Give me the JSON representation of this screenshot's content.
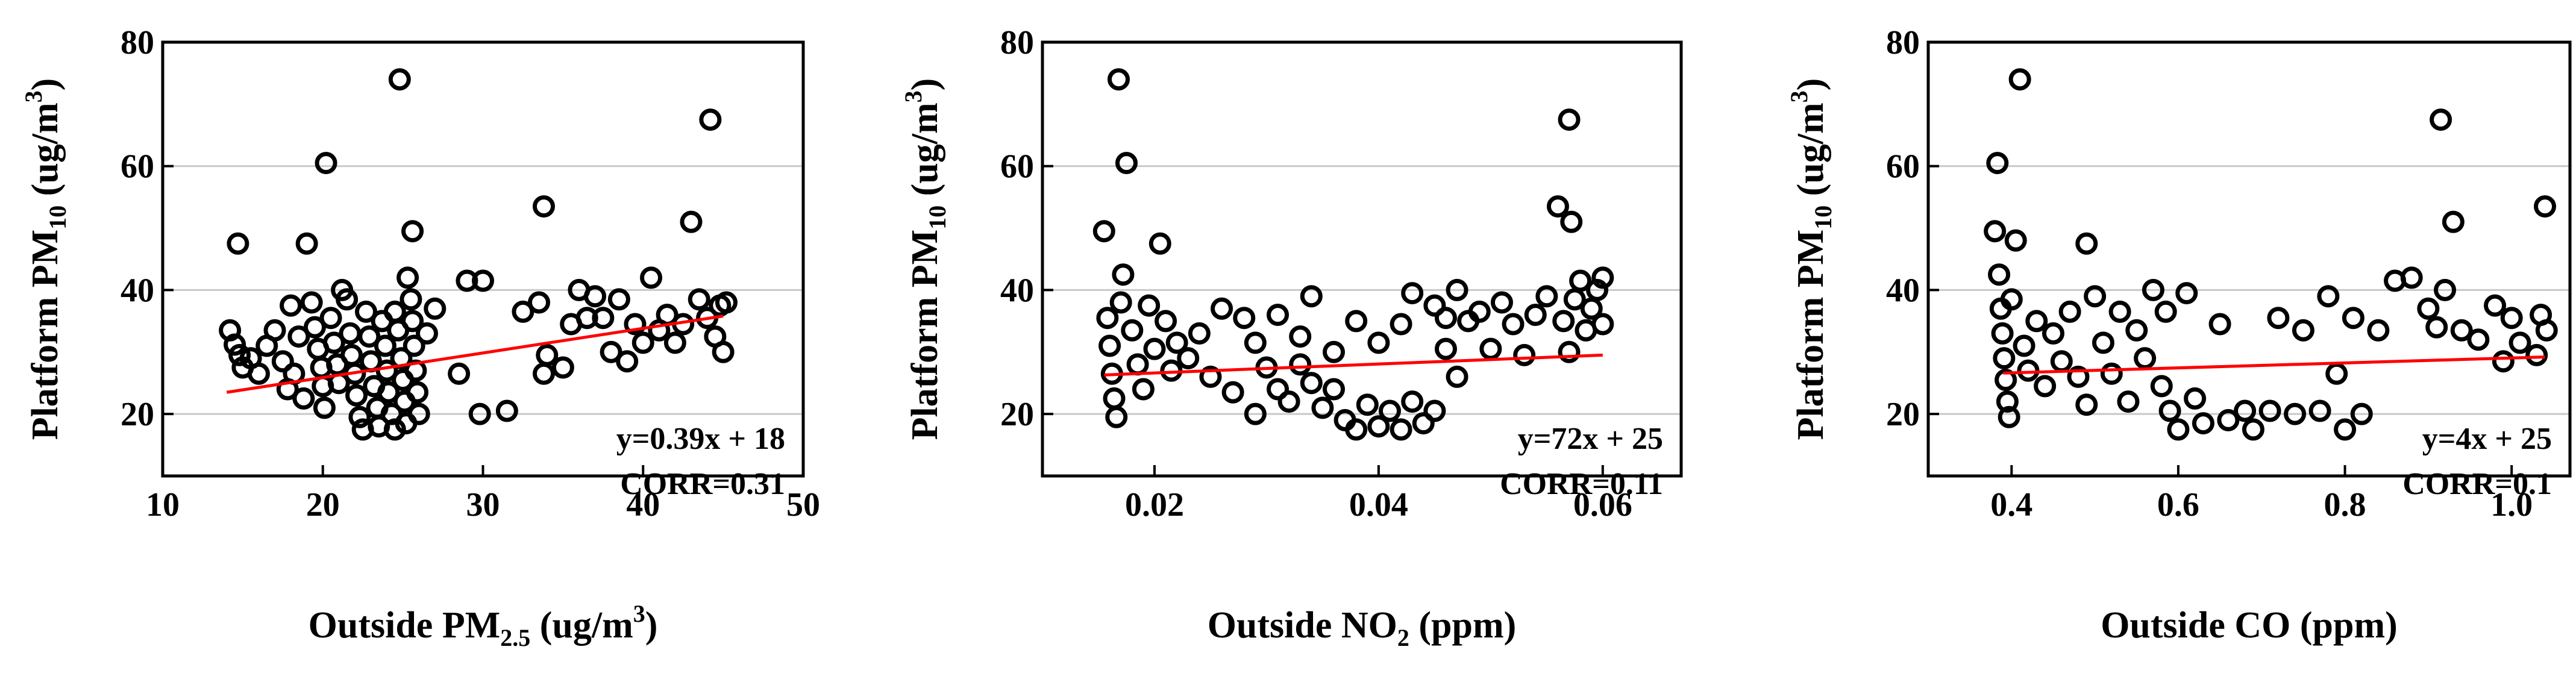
{
  "chart_data": [
    {
      "type": "scatter",
      "xlabel": {
        "pre": "Outside PM",
        "sub": "2.5",
        "mid": " (ug/m",
        "sup": "3",
        "post": ")"
      },
      "ylabel": {
        "pre": "Platform PM",
        "sub": "10",
        "mid": " (ug/m",
        "sup": "3",
        "post": ")"
      },
      "xlim": [
        10,
        50
      ],
      "ylim": [
        10,
        80
      ],
      "xticks": [
        10,
        20,
        30,
        40,
        50
      ],
      "xtick_labels": [
        "10",
        "20",
        "30",
        "40",
        "50"
      ],
      "yticks": [
        20,
        40,
        60,
        80
      ],
      "ytick_labels": [
        "20",
        "40",
        "60",
        "80"
      ],
      "grid": true,
      "fit_label": "y=0.39x + 18",
      "corr_label": "CORR=0.31",
      "fit_line": {
        "x": [
          14,
          45
        ],
        "y": [
          23.5,
          35.8
        ]
      },
      "points": [
        [
          14.2,
          33.5
        ],
        [
          14.5,
          31.2
        ],
        [
          14.8,
          29.5
        ],
        [
          15.0,
          27.5
        ],
        [
          14.7,
          47.5
        ],
        [
          15.5,
          29.0
        ],
        [
          16.0,
          26.5
        ],
        [
          16.5,
          31.0
        ],
        [
          17.0,
          33.5
        ],
        [
          17.5,
          28.5
        ],
        [
          17.8,
          24.0
        ],
        [
          18.0,
          37.5
        ],
        [
          18.5,
          32.5
        ],
        [
          18.2,
          26.5
        ],
        [
          18.8,
          22.5
        ],
        [
          19.0,
          47.5
        ],
        [
          19.3,
          38.0
        ],
        [
          19.5,
          34.0
        ],
        [
          19.7,
          30.5
        ],
        [
          19.9,
          27.5
        ],
        [
          20.0,
          24.5
        ],
        [
          20.1,
          21.0
        ],
        [
          20.2,
          60.5
        ],
        [
          20.5,
          35.5
        ],
        [
          20.7,
          31.5
        ],
        [
          20.9,
          28.0
        ],
        [
          21.0,
          25.0
        ],
        [
          21.2,
          40.0
        ],
        [
          21.5,
          38.5
        ],
        [
          21.7,
          33.0
        ],
        [
          21.8,
          29.5
        ],
        [
          22.0,
          26.5
        ],
        [
          22.1,
          23.0
        ],
        [
          22.3,
          19.5
        ],
        [
          22.5,
          17.5
        ],
        [
          22.7,
          36.5
        ],
        [
          22.9,
          32.5
        ],
        [
          23.0,
          28.5
        ],
        [
          23.2,
          24.5
        ],
        [
          23.4,
          21.0
        ],
        [
          23.5,
          18.0
        ],
        [
          23.7,
          35.0
        ],
        [
          23.9,
          31.0
        ],
        [
          24.0,
          27.0
        ],
        [
          24.1,
          23.5
        ],
        [
          24.3,
          20.0
        ],
        [
          24.5,
          17.5
        ],
        [
          24.5,
          36.5
        ],
        [
          24.7,
          33.5
        ],
        [
          24.9,
          29.0
        ],
        [
          25.0,
          25.5
        ],
        [
          25.1,
          22.0
        ],
        [
          25.2,
          18.5
        ],
        [
          24.8,
          74.0
        ],
        [
          25.3,
          42.0
        ],
        [
          25.5,
          38.5
        ],
        [
          25.6,
          35.0
        ],
        [
          25.7,
          31.0
        ],
        [
          25.8,
          27.0
        ],
        [
          25.9,
          23.5
        ],
        [
          26.0,
          20.0
        ],
        [
          25.6,
          49.5
        ],
        [
          26.5,
          33.0
        ],
        [
          27.0,
          37.0
        ],
        [
          28.5,
          26.5
        ],
        [
          29.0,
          41.5
        ],
        [
          29.8,
          20.0
        ],
        [
          30.0,
          41.5
        ],
        [
          31.5,
          20.5
        ],
        [
          32.5,
          36.5
        ],
        [
          33.5,
          38.0
        ],
        [
          33.8,
          26.5
        ],
        [
          34.0,
          29.5
        ],
        [
          33.8,
          53.5
        ],
        [
          35.0,
          27.5
        ],
        [
          35.5,
          34.5
        ],
        [
          36.0,
          40.0
        ],
        [
          36.5,
          35.5
        ],
        [
          37.0,
          39.0
        ],
        [
          37.5,
          35.5
        ],
        [
          38.0,
          30.0
        ],
        [
          38.5,
          38.5
        ],
        [
          39.0,
          28.5
        ],
        [
          39.5,
          34.5
        ],
        [
          40.0,
          31.5
        ],
        [
          40.5,
          42.0
        ],
        [
          41.0,
          33.5
        ],
        [
          41.5,
          36.0
        ],
        [
          42.0,
          31.5
        ],
        [
          42.5,
          34.5
        ],
        [
          43.0,
          51.0
        ],
        [
          43.5,
          38.5
        ],
        [
          44.0,
          35.5
        ],
        [
          44.2,
          67.5
        ],
        [
          44.5,
          32.5
        ],
        [
          44.8,
          37.5
        ],
        [
          45.0,
          30.0
        ],
        [
          45.2,
          38.0
        ]
      ]
    },
    {
      "type": "scatter",
      "xlabel": {
        "pre": "Outside NO",
        "sub": "2",
        "mid": " (ppm)",
        "sup": "",
        "post": ""
      },
      "ylabel": {
        "pre": "Platform PM",
        "sub": "10",
        "mid": " (ug/m",
        "sup": "3",
        "post": ")"
      },
      "xlim": [
        0.01,
        0.067
      ],
      "ylim": [
        10,
        80
      ],
      "xticks": [
        0.02,
        0.04,
        0.06
      ],
      "xtick_labels": [
        "0.02",
        "0.04",
        "0.06"
      ],
      "yticks": [
        20,
        40,
        60,
        80
      ],
      "ytick_labels": [
        "20",
        "40",
        "60",
        "80"
      ],
      "grid": true,
      "fit_label": "y=72x + 25",
      "corr_label": "CORR=0.11",
      "fit_line": {
        "x": [
          0.0155,
          0.06
        ],
        "y": [
          26.3,
          29.5
        ]
      },
      "points": [
        [
          0.0155,
          49.5
        ],
        [
          0.0158,
          35.5
        ],
        [
          0.016,
          31.0
        ],
        [
          0.0162,
          26.5
        ],
        [
          0.0164,
          22.5
        ],
        [
          0.0166,
          19.5
        ],
        [
          0.0168,
          74.0
        ],
        [
          0.017,
          38.0
        ],
        [
          0.0172,
          42.5
        ],
        [
          0.0175,
          60.5
        ],
        [
          0.018,
          33.5
        ],
        [
          0.0185,
          28.0
        ],
        [
          0.019,
          24.0
        ],
        [
          0.0195,
          37.5
        ],
        [
          0.02,
          30.5
        ],
        [
          0.0205,
          47.5
        ],
        [
          0.021,
          35.0
        ],
        [
          0.0215,
          27.0
        ],
        [
          0.022,
          31.5
        ],
        [
          0.023,
          29.0
        ],
        [
          0.024,
          33.0
        ],
        [
          0.025,
          26.0
        ],
        [
          0.026,
          37.0
        ],
        [
          0.027,
          23.5
        ],
        [
          0.028,
          35.5
        ],
        [
          0.029,
          20.0
        ],
        [
          0.029,
          31.5
        ],
        [
          0.03,
          27.5
        ],
        [
          0.031,
          24.0
        ],
        [
          0.031,
          36.0
        ],
        [
          0.032,
          22.0
        ],
        [
          0.033,
          32.5
        ],
        [
          0.033,
          28.0
        ],
        [
          0.034,
          25.0
        ],
        [
          0.034,
          39.0
        ],
        [
          0.035,
          21.0
        ],
        [
          0.036,
          30.0
        ],
        [
          0.036,
          24.0
        ],
        [
          0.037,
          19.0
        ],
        [
          0.038,
          17.5
        ],
        [
          0.038,
          35.0
        ],
        [
          0.039,
          21.5
        ],
        [
          0.04,
          18.0
        ],
        [
          0.04,
          31.5
        ],
        [
          0.041,
          20.5
        ],
        [
          0.042,
          17.5
        ],
        [
          0.042,
          34.5
        ],
        [
          0.043,
          39.5
        ],
        [
          0.043,
          22.0
        ],
        [
          0.044,
          18.5
        ],
        [
          0.045,
          37.5
        ],
        [
          0.045,
          20.5
        ],
        [
          0.046,
          35.5
        ],
        [
          0.046,
          30.5
        ],
        [
          0.047,
          26.0
        ],
        [
          0.047,
          40.0
        ],
        [
          0.048,
          35.0
        ],
        [
          0.049,
          36.5
        ],
        [
          0.05,
          30.5
        ],
        [
          0.051,
          38.0
        ],
        [
          0.052,
          34.5
        ],
        [
          0.053,
          29.5
        ],
        [
          0.054,
          36.0
        ],
        [
          0.055,
          39.0
        ],
        [
          0.056,
          53.5
        ],
        [
          0.0565,
          35.0
        ],
        [
          0.057,
          30.0
        ],
        [
          0.057,
          67.5
        ],
        [
          0.0572,
          51.0
        ],
        [
          0.0575,
          38.5
        ],
        [
          0.058,
          41.5
        ],
        [
          0.0585,
          33.5
        ],
        [
          0.059,
          37.0
        ],
        [
          0.0595,
          40.0
        ],
        [
          0.06,
          42.0
        ],
        [
          0.06,
          34.5
        ]
      ]
    },
    {
      "type": "scatter",
      "xlabel": {
        "pre": "Outside CO (ppm)",
        "sub": "",
        "mid": "",
        "sup": "",
        "post": ""
      },
      "ylabel": {
        "pre": "Platform PM",
        "sub": "10",
        "mid": " (ug/m",
        "sup": "3",
        "post": ")"
      },
      "xlim": [
        0.3,
        1.07
      ],
      "ylim": [
        10,
        80
      ],
      "xticks": [
        0.4,
        0.6,
        0.8,
        1.0
      ],
      "xtick_labels": [
        "0.4",
        "0.6",
        "0.8",
        "1.0"
      ],
      "yticks": [
        20,
        40,
        60,
        80
      ],
      "ytick_labels": [
        "20",
        "40",
        "60",
        "80"
      ],
      "grid": true,
      "fit_label": "y=4x + 25",
      "corr_label": "CORR=0.1",
      "fit_line": {
        "x": [
          0.39,
          1.04
        ],
        "y": [
          26.6,
          29.2
        ]
      },
      "points": [
        [
          0.38,
          49.5
        ],
        [
          0.383,
          60.5
        ],
        [
          0.385,
          42.5
        ],
        [
          0.387,
          37.0
        ],
        [
          0.389,
          33.0
        ],
        [
          0.391,
          29.0
        ],
        [
          0.393,
          25.5
        ],
        [
          0.395,
          22.0
        ],
        [
          0.397,
          19.5
        ],
        [
          0.4,
          38.5
        ],
        [
          0.405,
          48.0
        ],
        [
          0.41,
          74.0
        ],
        [
          0.415,
          31.0
        ],
        [
          0.42,
          27.0
        ],
        [
          0.43,
          35.0
        ],
        [
          0.44,
          24.5
        ],
        [
          0.45,
          33.0
        ],
        [
          0.46,
          28.5
        ],
        [
          0.47,
          36.5
        ],
        [
          0.48,
          26.0
        ],
        [
          0.49,
          47.5
        ],
        [
          0.49,
          21.5
        ],
        [
          0.5,
          39.0
        ],
        [
          0.51,
          31.5
        ],
        [
          0.52,
          26.5
        ],
        [
          0.53,
          36.5
        ],
        [
          0.54,
          22.0
        ],
        [
          0.55,
          33.5
        ],
        [
          0.56,
          29.0
        ],
        [
          0.57,
          40.0
        ],
        [
          0.58,
          24.5
        ],
        [
          0.585,
          36.5
        ],
        [
          0.59,
          20.5
        ],
        [
          0.6,
          17.5
        ],
        [
          0.61,
          39.5
        ],
        [
          0.62,
          22.5
        ],
        [
          0.63,
          18.5
        ],
        [
          0.65,
          34.5
        ],
        [
          0.66,
          19.0
        ],
        [
          0.68,
          20.5
        ],
        [
          0.69,
          17.5
        ],
        [
          0.71,
          20.5
        ],
        [
          0.72,
          35.5
        ],
        [
          0.74,
          20.0
        ],
        [
          0.75,
          33.5
        ],
        [
          0.77,
          20.5
        ],
        [
          0.78,
          39.0
        ],
        [
          0.79,
          26.5
        ],
        [
          0.8,
          17.5
        ],
        [
          0.81,
          35.5
        ],
        [
          0.82,
          20.0
        ],
        [
          0.84,
          33.5
        ],
        [
          0.86,
          41.5
        ],
        [
          0.88,
          42.0
        ],
        [
          0.9,
          37.0
        ],
        [
          0.91,
          34.0
        ],
        [
          0.915,
          67.5
        ],
        [
          0.92,
          40.0
        ],
        [
          0.93,
          51.0
        ],
        [
          0.94,
          33.5
        ],
        [
          0.96,
          32.0
        ],
        [
          0.98,
          37.5
        ],
        [
          0.99,
          28.5
        ],
        [
          1.0,
          35.5
        ],
        [
          1.01,
          31.5
        ],
        [
          1.03,
          29.5
        ],
        [
          1.035,
          36.0
        ],
        [
          1.04,
          53.5
        ],
        [
          1.042,
          33.5
        ]
      ]
    }
  ]
}
